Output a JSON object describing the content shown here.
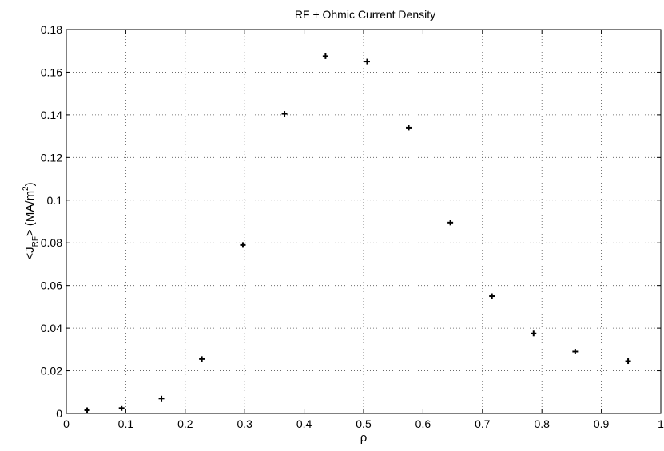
{
  "chart_data": {
    "type": "scatter",
    "title": "RF + Ohmic Current Density",
    "xlabel": "ρ",
    "ylabel": {
      "prefix": "<J",
      "subscript": "RF",
      "middle": "> (MA/m",
      "superscript": "2",
      "suffix": ")"
    },
    "xlim": [
      0,
      1
    ],
    "ylim": [
      0,
      0.18
    ],
    "xticks": [
      0,
      0.1,
      0.2,
      0.3,
      0.4,
      0.5,
      0.6,
      0.7,
      0.8,
      0.9,
      1
    ],
    "xtick_labels": [
      "0",
      "0.1",
      "0.2",
      "0.3",
      "0.4",
      "0.5",
      "0.6",
      "0.7",
      "0.8",
      "0.9",
      "1"
    ],
    "yticks": [
      0,
      0.02,
      0.04,
      0.06,
      0.08,
      0.1,
      0.12,
      0.14,
      0.16,
      0.18
    ],
    "ytick_labels": [
      "0",
      "0.02",
      "0.04",
      "0.06",
      "0.08",
      "0.1",
      "0.12",
      "0.14",
      "0.16",
      "0.18"
    ],
    "grid": true,
    "marker": "plus",
    "color": "#000000",
    "x": [
      0.035,
      0.093,
      0.16,
      0.228,
      0.297,
      0.367,
      0.436,
      0.506,
      0.576,
      0.646,
      0.716,
      0.786,
      0.856,
      0.945
    ],
    "y": [
      0.0015,
      0.0025,
      0.007,
      0.0255,
      0.079,
      0.1405,
      0.1675,
      0.165,
      0.134,
      0.0895,
      0.055,
      0.0375,
      0.029,
      0.0245
    ]
  }
}
